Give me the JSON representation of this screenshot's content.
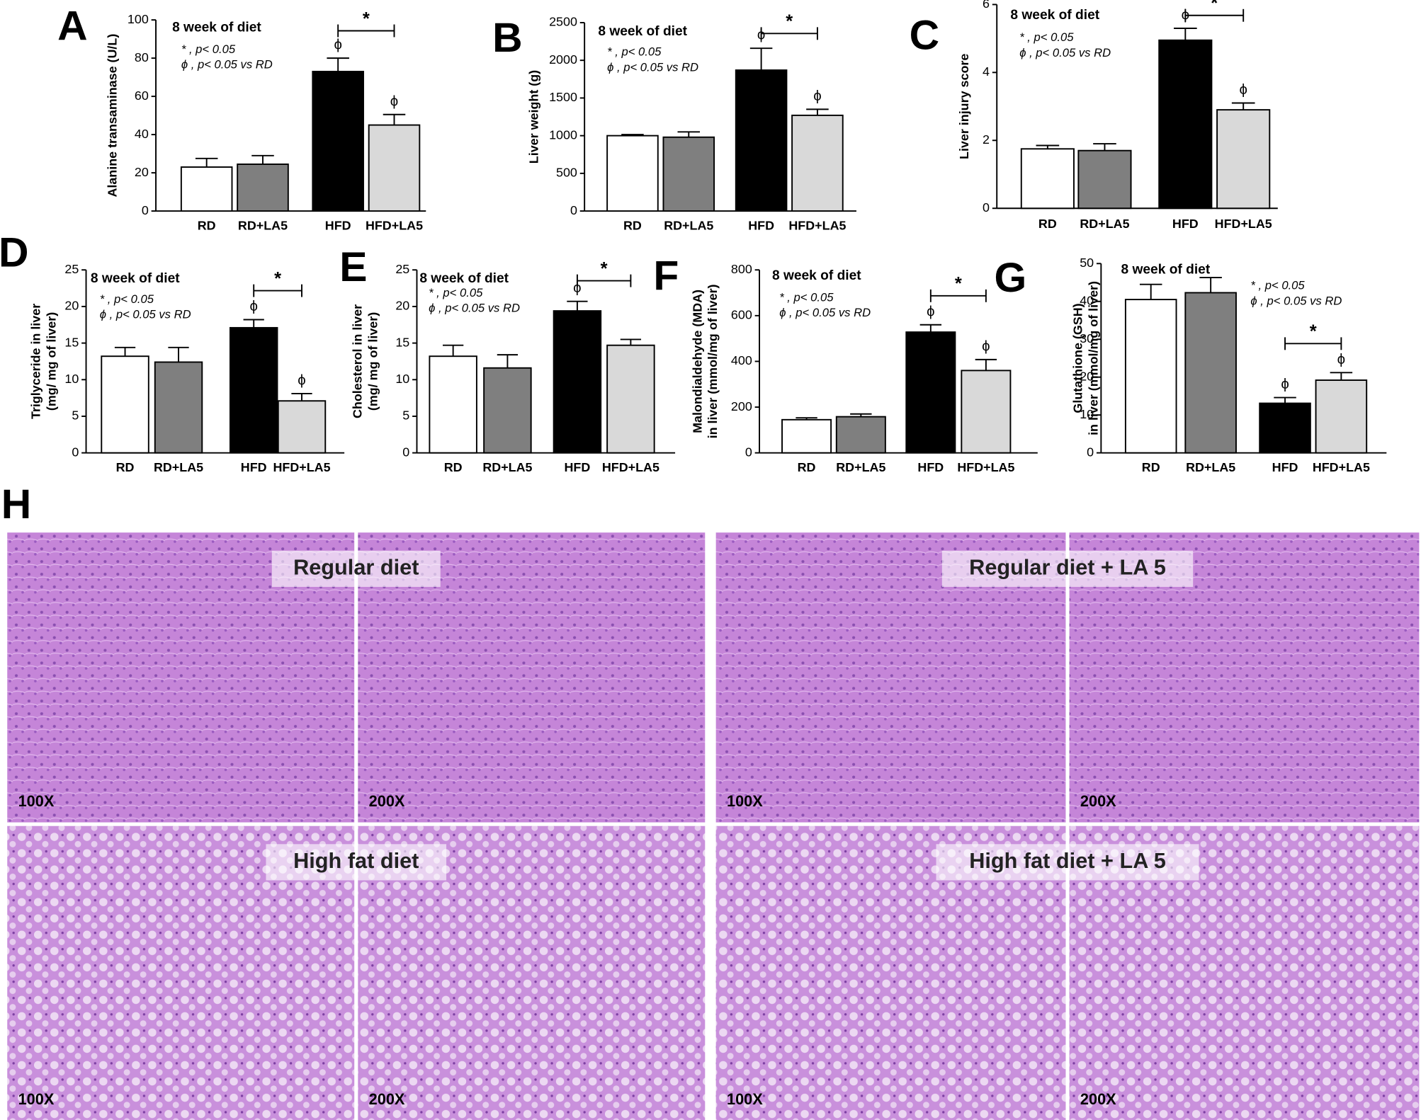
{
  "chart_data": [
    {
      "type": "bar",
      "panel": "A",
      "title": "8 week of diet",
      "annotations": [
        "* , p< 0.05",
        "ϕ , p< 0.05 vs RD"
      ],
      "ylabel": [
        "Alanine transaminase (U/L)"
      ],
      "categories": [
        "RD",
        "RD+LA5",
        "HFD",
        "HFD+LA5"
      ],
      "values": [
        23,
        24.5,
        73,
        45
      ],
      "errors": [
        4.5,
        4.5,
        7,
        5.5
      ],
      "colors": [
        "#ffffff",
        "#7f7f7f",
        "#000000",
        "#d9d9d9"
      ],
      "markers": [
        null,
        null,
        "ϕ",
        "ϕ"
      ],
      "significance": "*",
      "ylim": [
        0,
        100
      ],
      "yticks": [
        0,
        20,
        40,
        60,
        80,
        100
      ]
    },
    {
      "type": "bar",
      "panel": "B",
      "title": "8 week of diet",
      "annotations": [
        "* , p< 0.05",
        "ϕ , p< 0.05 vs RD"
      ],
      "ylabel": [
        "Liver weight (g)"
      ],
      "categories": [
        "RD",
        "RD+LA5",
        "HFD",
        "HFD+LA5"
      ],
      "values": [
        1000,
        980,
        1870,
        1270
      ],
      "errors": [
        15,
        70,
        290,
        80
      ],
      "colors": [
        "#ffffff",
        "#7f7f7f",
        "#000000",
        "#d9d9d9"
      ],
      "markers": [
        null,
        null,
        "ϕ",
        "ϕ"
      ],
      "significance": "*",
      "ylim": [
        0,
        2500
      ],
      "yticks": [
        0,
        500,
        1000,
        1500,
        2000,
        2500
      ]
    },
    {
      "type": "bar",
      "panel": "C",
      "title": "8 week of diet",
      "annotations": [
        "* , p< 0.05",
        "ϕ , p< 0.05 vs RD"
      ],
      "ylabel": [
        "Liver injury score"
      ],
      "categories": [
        "RD",
        "RD+LA5",
        "HFD",
        "HFD+LA5"
      ],
      "values": [
        1.75,
        1.7,
        4.95,
        2.9
      ],
      "errors": [
        0.1,
        0.2,
        0.35,
        0.2
      ],
      "colors": [
        "#ffffff",
        "#7f7f7f",
        "#000000",
        "#d9d9d9"
      ],
      "markers": [
        null,
        null,
        "ϕ",
        "ϕ"
      ],
      "significance": "*",
      "ylim": [
        0,
        6
      ],
      "yticks": [
        0,
        2,
        4,
        6
      ]
    },
    {
      "type": "bar",
      "panel": "D",
      "title": "8 week of diet",
      "annotations": [
        "* , p< 0.05",
        "ϕ , p< 0.05 vs RD"
      ],
      "ylabel": [
        "Triglyceride in liver",
        "(mg/ mg of liver)"
      ],
      "categories": [
        "RD",
        "RD+LA5",
        "HFD",
        "HFD+LA5"
      ],
      "values": [
        13.2,
        12.4,
        17.1,
        7.1
      ],
      "errors": [
        1.2,
        2,
        1.1,
        1
      ],
      "colors": [
        "#ffffff",
        "#7f7f7f",
        "#000000",
        "#d9d9d9"
      ],
      "markers": [
        null,
        null,
        "ϕ",
        "ϕ"
      ],
      "significance": "*",
      "ylim": [
        0,
        25
      ],
      "yticks": [
        0,
        5,
        10,
        15,
        20,
        25
      ]
    },
    {
      "type": "bar",
      "panel": "E",
      "title": "8 week of diet",
      "annotations": [
        "* , p< 0.05",
        "ϕ , p< 0.05 vs RD"
      ],
      "ylabel": [
        "Cholesterol in liver",
        "(mg/ mg of liver)"
      ],
      "categories": [
        "RD",
        "RD+LA5",
        "HFD",
        "HFD+LA5"
      ],
      "values": [
        13.2,
        11.6,
        19.4,
        14.7
      ],
      "errors": [
        1.5,
        1.8,
        1.3,
        0.8
      ],
      "colors": [
        "#ffffff",
        "#7f7f7f",
        "#000000",
        "#d9d9d9"
      ],
      "markers": [
        null,
        null,
        "ϕ",
        null
      ],
      "significance": "*",
      "ylim": [
        0,
        25
      ],
      "yticks": [
        0,
        5,
        10,
        15,
        20,
        25
      ]
    },
    {
      "type": "bar",
      "panel": "F",
      "title": "8 week of diet",
      "annotations": [
        "* , p< 0.05",
        "ϕ , p< 0.05 vs RD"
      ],
      "ylabel": [
        "Malondialdehyde (MDA)",
        "in liver (mmol/mg of liver)"
      ],
      "categories": [
        "RD",
        "RD+LA5",
        "HFD",
        "HFD+LA5"
      ],
      "values": [
        145,
        158,
        528,
        360
      ],
      "errors": [
        8,
        12,
        32,
        48
      ],
      "colors": [
        "#ffffff",
        "#7f7f7f",
        "#000000",
        "#d9d9d9"
      ],
      "markers": [
        null,
        null,
        "ϕ",
        "ϕ"
      ],
      "significance": "*",
      "ylim": [
        0,
        800
      ],
      "yticks": [
        0,
        200,
        400,
        600,
        800
      ]
    },
    {
      "type": "bar",
      "panel": "G",
      "title": "8 week of diet",
      "annotations": [
        "* , p< 0.05",
        "ϕ , p< 0.05 vs RD"
      ],
      "ylabel": [
        "Glutathione (GSH)",
        "in liver (mmol/mg of liver)"
      ],
      "categories": [
        "RD",
        "RD+LA5",
        "HFD",
        "HFD+LA5"
      ],
      "values": [
        40.5,
        42.3,
        13.1,
        19.2
      ],
      "errors": [
        4,
        4,
        1.5,
        2
      ],
      "colors": [
        "#ffffff",
        "#7f7f7f",
        "#000000",
        "#d9d9d9"
      ],
      "markers": [
        null,
        null,
        "ϕ",
        "ϕ"
      ],
      "significance": "*",
      "ylim": [
        0,
        50
      ],
      "yticks": [
        0,
        10,
        20,
        30,
        40,
        50
      ]
    }
  ],
  "histology": {
    "panel": "H",
    "groups": [
      {
        "title": "Regular diet",
        "magnifications": [
          "100X",
          "200X"
        ]
      },
      {
        "title": "Regular diet + LA 5",
        "magnifications": [
          "100X",
          "200X"
        ]
      },
      {
        "title": "High fat diet",
        "magnifications": [
          "100X",
          "200X"
        ]
      },
      {
        "title": "High fat diet + LA 5",
        "magnifications": [
          "100X",
          "200X"
        ]
      }
    ]
  }
}
